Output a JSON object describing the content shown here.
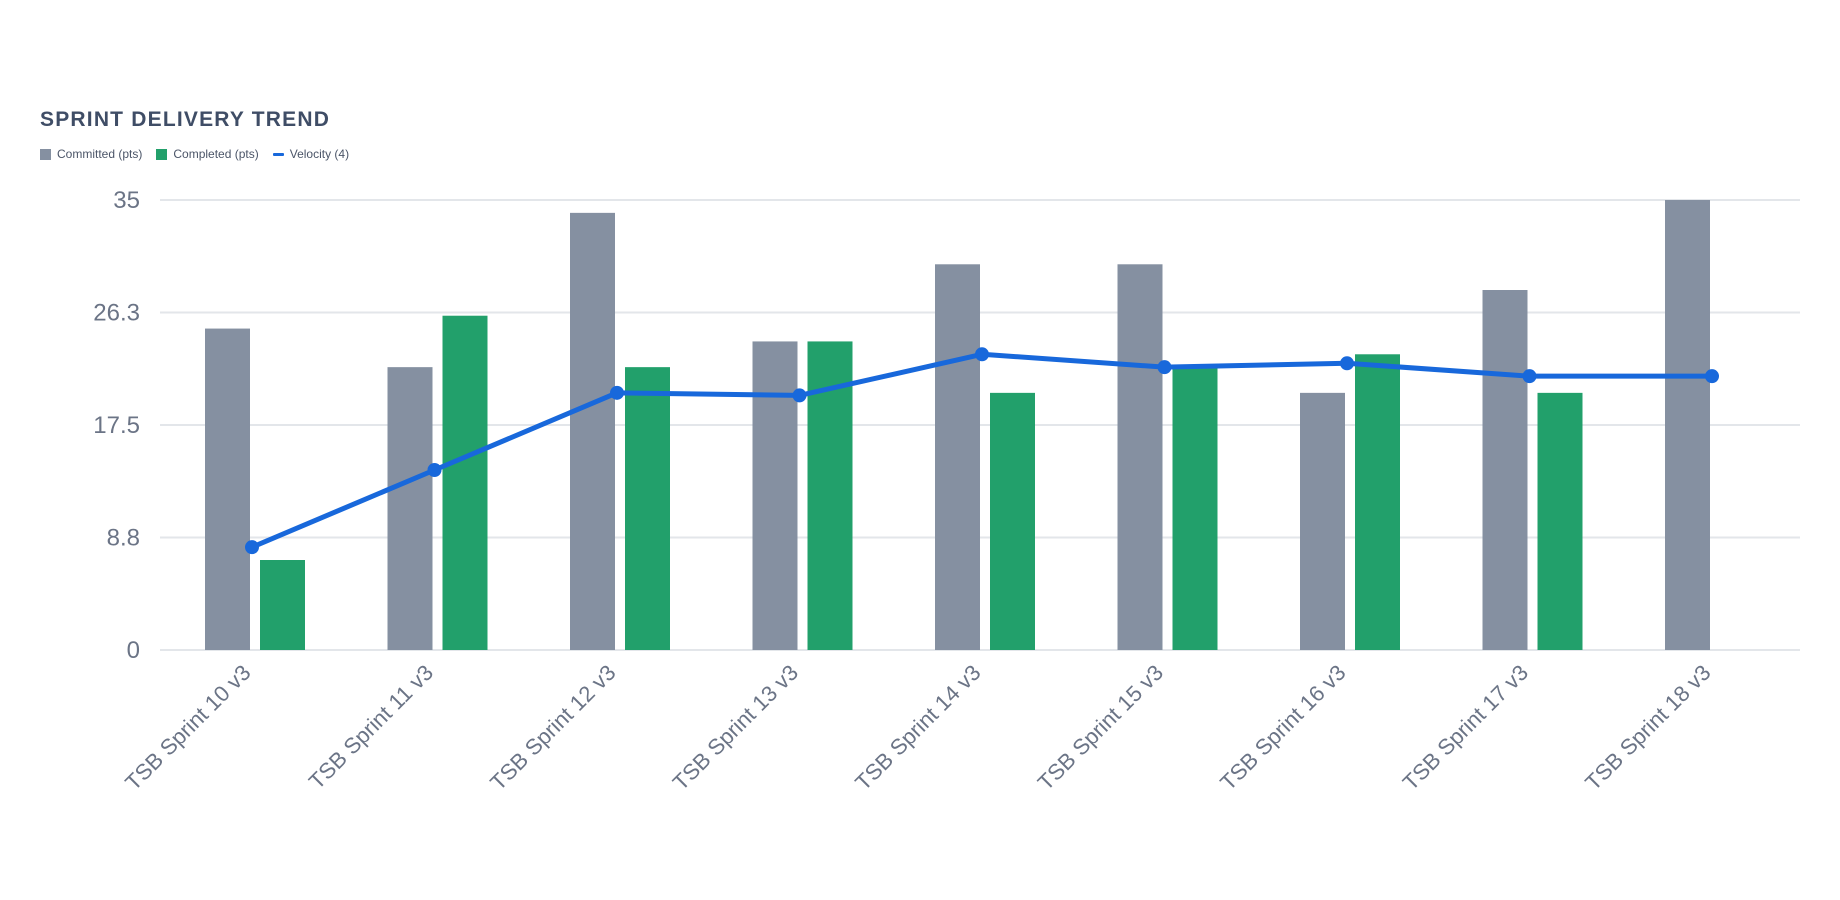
{
  "chart_data": {
    "type": "bar",
    "title": "SPRINT DELIVERY TREND",
    "categories": [
      "TSB Sprint 10 v3",
      "TSB Sprint 11 v3",
      "TSB Sprint 12 v3",
      "TSB Sprint 13 v3",
      "TSB Sprint 14 v3",
      "TSB Sprint 15 v3",
      "TSB Sprint 16 v3",
      "TSB Sprint 17 v3",
      "TSB Sprint 18 v3"
    ],
    "series": [
      {
        "name": "Committed (pts)",
        "kind": "bar",
        "color": "#8590a1",
        "values": [
          25,
          22,
          34,
          24,
          30,
          30,
          20,
          28,
          35
        ]
      },
      {
        "name": "Completed (pts)",
        "kind": "bar",
        "color": "#22a06b",
        "values": [
          7,
          26,
          22,
          24,
          20,
          22,
          23,
          20,
          null
        ]
      },
      {
        "name": "Velocity (4)",
        "kind": "line",
        "color": "#1868db",
        "values": [
          8,
          14,
          20,
          19.8,
          23,
          22,
          22.3,
          21.3,
          21.3
        ]
      }
    ],
    "yticks": [
      "0",
      "8.8",
      "17.5",
      "26.3",
      "35"
    ],
    "ylim": [
      0,
      35
    ],
    "grid": true,
    "legend_position": "top-left"
  }
}
